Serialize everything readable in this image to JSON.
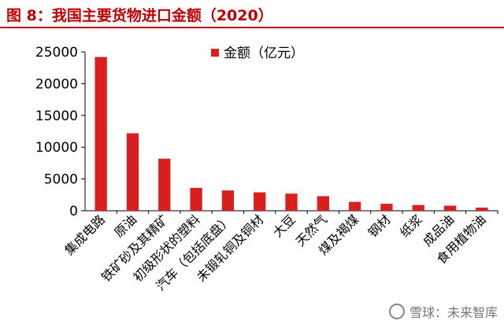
{
  "figure": {
    "title": "图 8：我国主要货物进口金额（2020）",
    "colors": {
      "title": "#c00000",
      "bar": "#d9201f",
      "axis": "#000000"
    }
  },
  "watermark": {
    "text": "雪球：未来智库"
  },
  "chart_data": {
    "type": "bar",
    "title": "",
    "xlabel": "",
    "ylabel": "",
    "ylim": [
      0,
      25000
    ],
    "yticks": [
      0,
      5000,
      10000,
      15000,
      20000,
      25000
    ],
    "grid": false,
    "legend_position": "top-center",
    "categories": [
      "集成电路",
      "原油",
      "铁矿砂及其精矿",
      "初级形状的塑料",
      "汽车（包括底盘）",
      "未锻轧铜及铜材",
      "大豆",
      "天然气",
      "煤及褐煤",
      "钢材",
      "纸浆",
      "成品油",
      "食用植物油"
    ],
    "series": [
      {
        "name": "金额（亿元）",
        "color": "#d9201f",
        "values": [
          24200,
          12200,
          8200,
          3600,
          3200,
          2900,
          2700,
          2300,
          1400,
          1100,
          900,
          800,
          500
        ]
      }
    ]
  }
}
